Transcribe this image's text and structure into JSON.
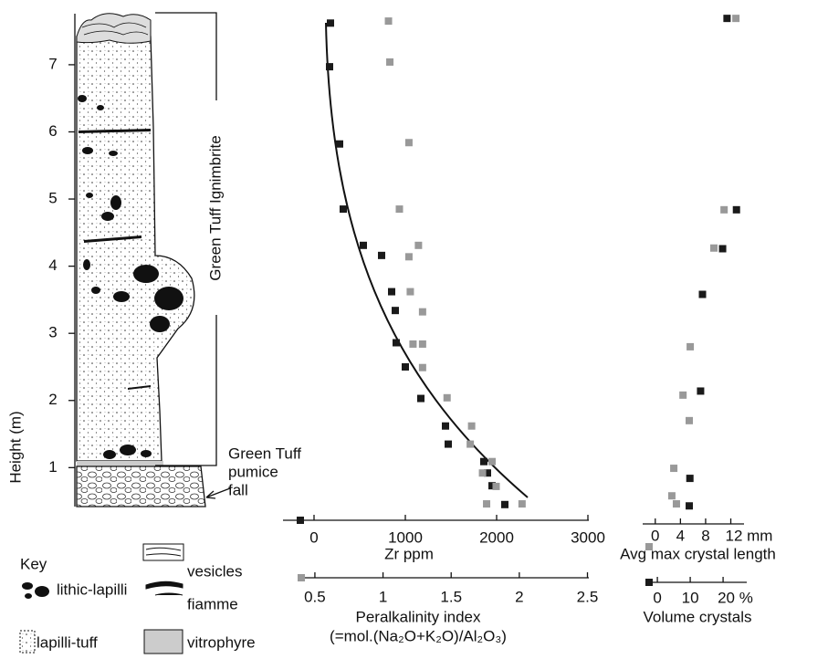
{
  "chart_data": {
    "type": "scatter",
    "y_label": "Height (m)",
    "ylim": [
      0.42,
      7.76
    ],
    "yticks": [
      1,
      2,
      3,
      4,
      5,
      6,
      7
    ],
    "annotations": {
      "unit_bracket": "Green Tuff Ignimbrite",
      "fall": [
        "Green Tuff",
        "pumice",
        "fall"
      ]
    },
    "axes": [
      {
        "label": "Zr ppm",
        "xlim": [
          -340,
          3010
        ],
        "xticks": [
          0,
          1000,
          2000,
          3000
        ],
        "marker_color": "#1a1a1a"
      },
      {
        "label": "Peralkalinity index",
        "sublabel": "(=mol.(Na₂O+K₂O)/Al₂O₃)",
        "xlim": [
          0.4,
          2.51
        ],
        "xticks": [
          0.5,
          1,
          1.5,
          2,
          2.5
        ],
        "marker_color": "#999999"
      },
      {
        "label": "Avg max crystal length",
        "xlim": [
          -2,
          14.1
        ],
        "xticks": [
          0,
          4,
          8,
          {
            "value": 12,
            "label": "12 mm"
          }
        ],
        "marker_color": "#999999"
      },
      {
        "label": "Volume crystals",
        "xlim": [
          -2.8,
          27.2
        ],
        "xticks": [
          0,
          10,
          {
            "value": 20,
            "label": "20 %"
          }
        ],
        "marker_color": "#1a1a1a"
      }
    ],
    "series": [
      {
        "axis": 0,
        "color": "#1a1a1a",
        "x": [
          180,
          170,
          280,
          320,
          540,
          740,
          850,
          890,
          900,
          1000,
          1170,
          1440,
          1470,
          1860,
          1900,
          1950,
          2090
        ],
        "y": [
          7.62,
          6.97,
          5.82,
          4.85,
          4.31,
          4.16,
          3.62,
          3.34,
          2.86,
          2.5,
          2.03,
          1.62,
          1.35,
          1.09,
          0.92,
          0.73,
          0.45
        ]
      },
      {
        "axis": 1,
        "color": "#999999",
        "x": [
          1.04,
          1.05,
          1.19,
          1.12,
          1.26,
          1.19,
          1.2,
          1.29,
          1.22,
          1.29,
          1.29,
          1.47,
          1.65,
          1.64,
          1.8,
          1.73,
          1.83,
          1.76,
          2.02
        ],
        "y": [
          7.65,
          7.04,
          5.84,
          4.85,
          4.31,
          4.14,
          3.62,
          3.32,
          2.84,
          2.84,
          2.49,
          2.04,
          1.62,
          1.35,
          1.09,
          0.92,
          0.72,
          0.46,
          0.46
        ]
      },
      {
        "axis": 2,
        "color": "#1a1a1a",
        "x": [
          11.4,
          12.9,
          10.7,
          7.5,
          7.2,
          5.5,
          5.4
        ],
        "y": [
          7.69,
          4.84,
          4.26,
          3.58,
          2.14,
          0.84,
          0.43
        ]
      },
      {
        "axis": 3,
        "color": "#999999",
        "x": [
          23.9,
          20.3,
          17.2,
          10,
          7.8,
          9.7,
          5,
          4.4,
          5.8
        ],
        "y": [
          7.69,
          4.84,
          4.27,
          2.8,
          2.08,
          1.7,
          0.99,
          0.58,
          0.46
        ]
      }
    ],
    "key": {
      "title": "Key",
      "items": [
        "lithic-lapilli",
        "lapilli-tuff",
        "vesicles",
        "fiamme",
        "vitrophyre"
      ]
    }
  }
}
